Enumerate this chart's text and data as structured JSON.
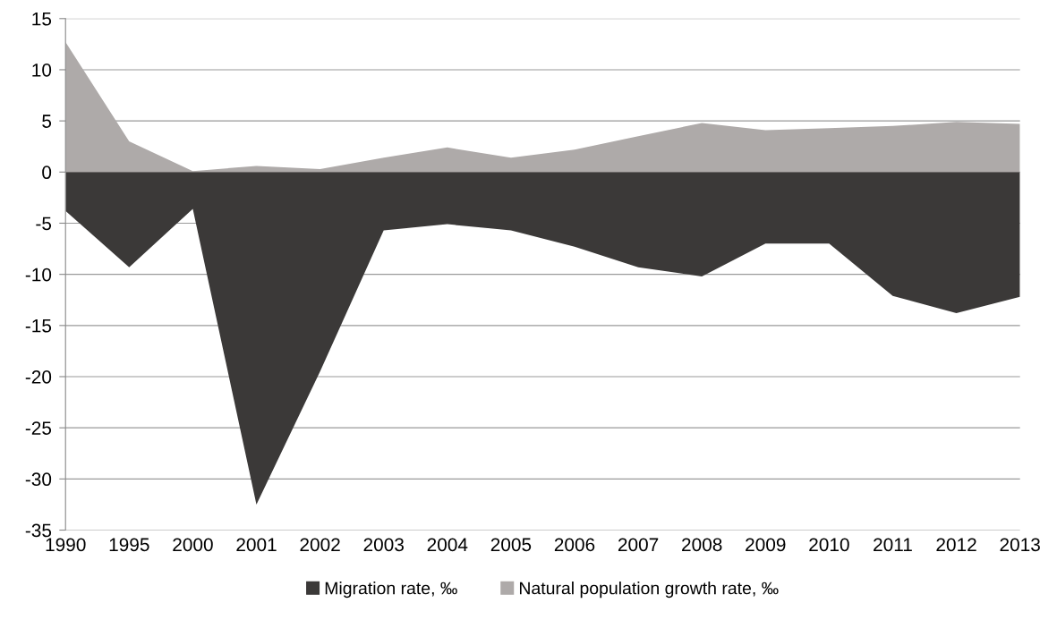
{
  "chart_data": {
    "type": "area",
    "categories": [
      "1990",
      "1995",
      "2000",
      "2001",
      "2002",
      "2003",
      "2004",
      "2005",
      "2006",
      "2007",
      "2008",
      "2009",
      "2010",
      "2011",
      "2012",
      "2013"
    ],
    "series": [
      {
        "name": "Migration rate, ‰",
        "color": "#3b3938",
        "values": [
          -3.8,
          -9.3,
          -3.6,
          -32.5,
          -19.5,
          -5.7,
          -5.1,
          -5.7,
          -7.3,
          -9.3,
          -10.2,
          -7.0,
          -7.0,
          -12.1,
          -13.8,
          -12.2
        ]
      },
      {
        "name": "Natural population growth rate, ‰",
        "color": "#aeaaa9",
        "values": [
          12.7,
          3.0,
          0.1,
          0.6,
          0.3,
          1.4,
          2.4,
          1.4,
          2.2,
          3.5,
          4.8,
          4.1,
          4.3,
          4.5,
          4.9,
          4.7
        ]
      }
    ],
    "ylim": [
      -35,
      15
    ],
    "yticks": [
      -35,
      -30,
      -25,
      -20,
      -15,
      -10,
      -5,
      0,
      5,
      10,
      15
    ],
    "grid": "y",
    "legend": "bottom"
  }
}
